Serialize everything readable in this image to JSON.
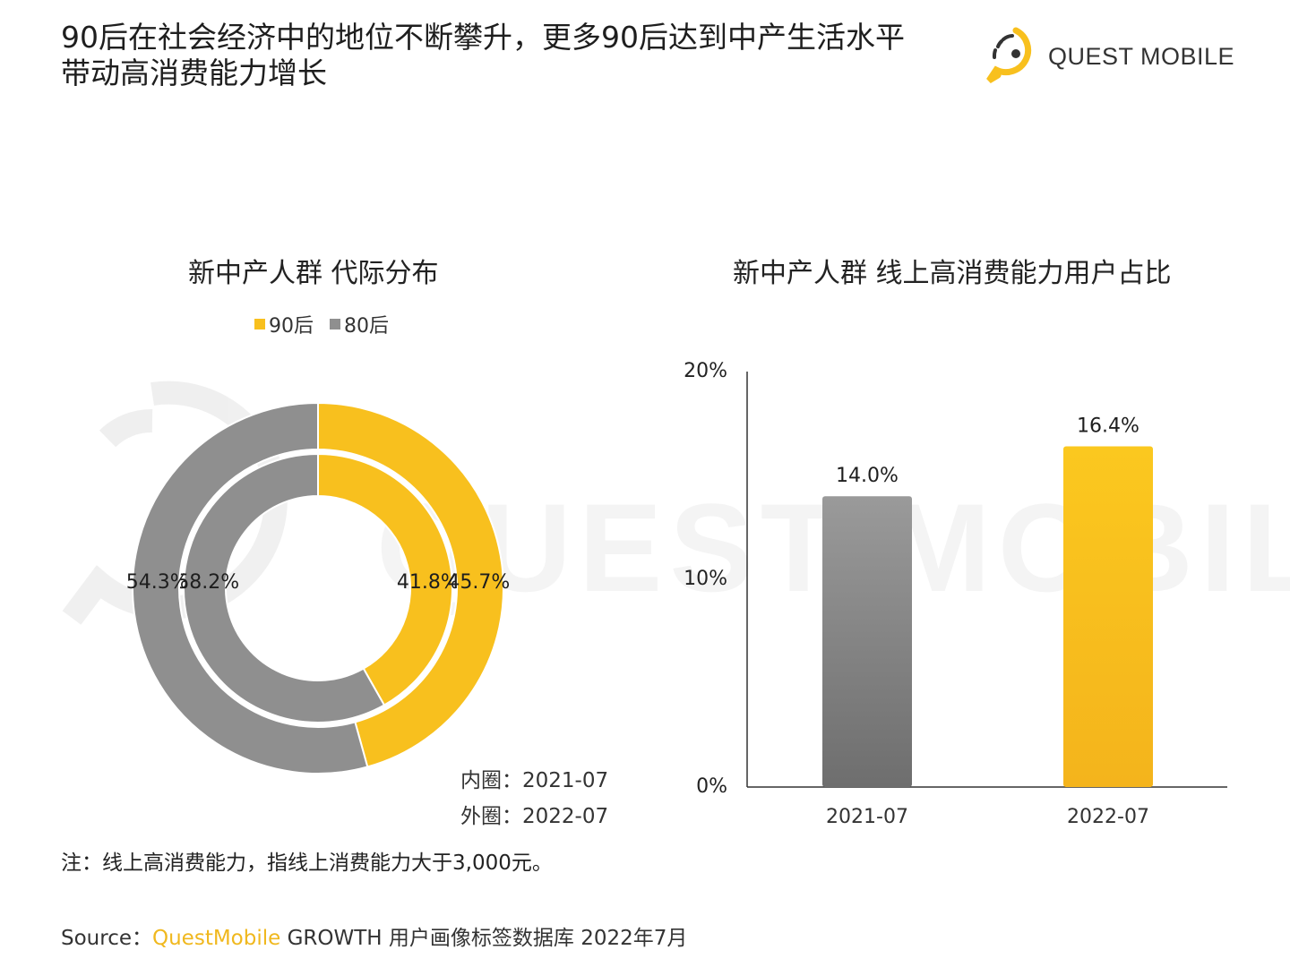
{
  "headline": {
    "line1": "90后在社会经济中的地位不断攀升，更多90后达到中产生活水平",
    "line2": "带动高消费能力增长"
  },
  "logo": {
    "text": "QUEST MOBILE",
    "icon": "questmobile-logo-icon"
  },
  "watermark": {
    "text": "QUEST MOBILE"
  },
  "colors": {
    "yellow": "#f8c01e",
    "gray": "#8f8f8f",
    "axis": "#333333"
  },
  "chart_data": [
    {
      "type": "pie",
      "title": "新中产人群 代际分布",
      "legend": [
        {
          "name": "90后",
          "color": "#f8c01e"
        },
        {
          "name": "80后",
          "color": "#8f8f8f"
        }
      ],
      "rings": [
        {
          "label": "内圈：2021-07",
          "ring": "inner",
          "slices": [
            {
              "name": "90后",
              "value": 41.8,
              "label": "41.8%"
            },
            {
              "name": "80后",
              "value": 58.2,
              "label": "58.2%"
            }
          ]
        },
        {
          "label": "外圈：2022-07",
          "ring": "outer",
          "slices": [
            {
              "name": "90后",
              "value": 45.7,
              "label": "45.7%"
            },
            {
              "name": "80后",
              "value": 54.3,
              "label": "54.3%"
            }
          ]
        }
      ]
    },
    {
      "type": "bar",
      "title": "新中产人群 线上高消费能力用户占比",
      "categories": [
        "2021-07",
        "2022-07"
      ],
      "values": [
        14.0,
        16.4
      ],
      "value_labels": [
        "14.0%",
        "16.4%"
      ],
      "colors": [
        "#8f8f8f",
        "#f8c01e"
      ],
      "ylim": [
        0,
        20
      ],
      "yticks": [
        {
          "value": 0,
          "label": "0%"
        },
        {
          "value": 10,
          "label": "10%"
        },
        {
          "value": 20,
          "label": "20%"
        }
      ],
      "grid": false
    }
  ],
  "note": "注：线上高消费能力，指线上消费能力大于3,000元。",
  "source": {
    "prefix": "Source：",
    "brand": "QuestMobile",
    "rest": " GROWTH 用户画像标签数据库 2022年7月"
  }
}
